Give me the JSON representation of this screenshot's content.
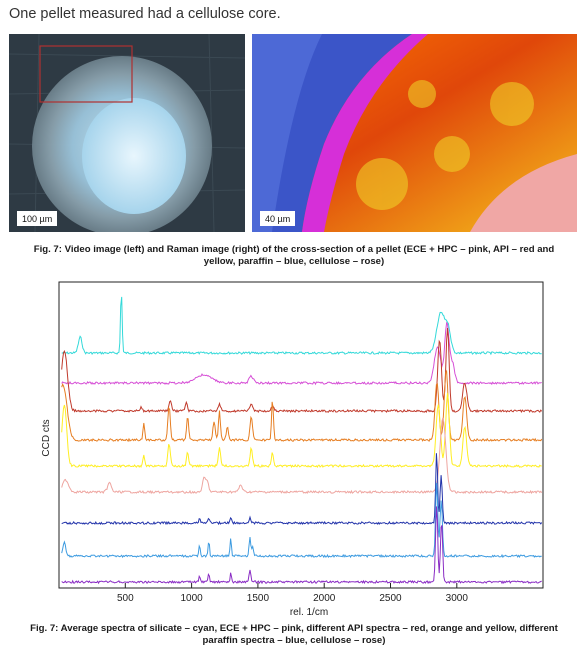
{
  "intro_text": "One pellet measured had a cellulose core.",
  "images": {
    "left_scale": "100 µm",
    "right_scale": "40 µm"
  },
  "figure1_caption": "Fig. 7: Video image (left) and Raman image (right) of the cross-section of a pellet (ECE + HPC – pink, API – red and yellow, paraffin – blue, cellulose – rose)",
  "figure2_caption": "Fig. 7: Average spectra of silicate – cyan, ECE + HPC – pink, different API spectra – red, orange and yellow, different paraffin spectra – blue, cellulose – rose)",
  "colors": {
    "cyan": "#33d9d9",
    "pink": "#d64fd6",
    "red": "#c0392b",
    "orange": "#e67e22",
    "yellow": "#ffee22",
    "rose": "#eea5a0",
    "blue": "#2233aa",
    "lightblue": "#3d9be0",
    "purple": "#8a2cc4"
  },
  "chart_data": {
    "type": "line",
    "xlabel": "rel. 1/cm",
    "ylabel": "CCD cts",
    "xlim": [
      0,
      3650
    ],
    "xticks": [
      500,
      1000,
      1500,
      2000,
      2500,
      3000
    ],
    "series": [
      {
        "color": "#33d9d9",
        "baseline": 353,
        "peaks": [
          [
            160,
            16,
            14
          ],
          [
            470,
            62,
            6
          ],
          [
            2880,
            40,
            30
          ],
          [
            2935,
            22,
            20
          ]
        ]
      },
      {
        "color": "#d64fd6",
        "baseline": 383,
        "peaks": [
          [
            1090,
            8,
            60
          ],
          [
            1450,
            7,
            16
          ],
          [
            2855,
            36,
            24
          ],
          [
            2925,
            58,
            16
          ],
          [
            2965,
            20,
            18
          ]
        ]
      },
      {
        "color": "#c0392b",
        "baseline": 411,
        "peaks": [
          [
            40,
            60,
            24
          ],
          [
            620,
            4,
            8
          ],
          [
            840,
            10,
            10
          ],
          [
            960,
            9,
            8
          ],
          [
            1210,
            7,
            10
          ],
          [
            1450,
            8,
            10
          ],
          [
            1610,
            5,
            10
          ],
          [
            2870,
            72,
            14
          ],
          [
            2930,
            84,
            12
          ],
          [
            3060,
            28,
            16
          ]
        ]
      },
      {
        "color": "#e67e22",
        "baseline": 440,
        "peaks": [
          [
            30,
            55,
            30
          ],
          [
            640,
            18,
            6
          ],
          [
            830,
            34,
            9
          ],
          [
            970,
            24,
            8
          ],
          [
            1170,
            18,
            9
          ],
          [
            1210,
            30,
            7
          ],
          [
            1270,
            14,
            8
          ],
          [
            1450,
            24,
            9
          ],
          [
            1610,
            40,
            7
          ],
          [
            2850,
            58,
            14
          ],
          [
            2920,
            70,
            14
          ],
          [
            3060,
            44,
            14
          ]
        ]
      },
      {
        "color": "#ffee22",
        "baseline": 466,
        "peaks": [
          [
            40,
            62,
            18
          ],
          [
            640,
            12,
            6
          ],
          [
            830,
            22,
            9
          ],
          [
            970,
            14,
            8
          ],
          [
            1210,
            18,
            9
          ],
          [
            1450,
            18,
            9
          ],
          [
            1610,
            14,
            7
          ],
          [
            2860,
            62,
            16
          ],
          [
            2930,
            72,
            14
          ],
          [
            3060,
            40,
            14
          ]
        ]
      },
      {
        "color": "#eea5a0",
        "baseline": 492,
        "peaks": [
          [
            50,
            12,
            22
          ],
          [
            380,
            9,
            14
          ],
          [
            1095,
            14,
            12
          ],
          [
            1120,
            9,
            10
          ],
          [
            1370,
            7,
            12
          ],
          [
            2895,
            74,
            22
          ]
        ]
      },
      {
        "color": "#2233aa",
        "baseline": 523,
        "peaks": [
          [
            1060,
            4,
            6
          ],
          [
            1130,
            5,
            6
          ],
          [
            1295,
            6,
            5
          ],
          [
            1440,
            6,
            6
          ],
          [
            2848,
            72,
            7
          ],
          [
            2882,
            48,
            8
          ]
        ]
      },
      {
        "color": "#3d9be0",
        "baseline": 556,
        "peaks": [
          [
            40,
            14,
            10
          ],
          [
            1060,
            12,
            5
          ],
          [
            1130,
            16,
            5
          ],
          [
            1295,
            18,
            5
          ],
          [
            1440,
            18,
            6
          ],
          [
            1460,
            10,
            6
          ],
          [
            2848,
            74,
            8
          ],
          [
            2882,
            56,
            9
          ]
        ]
      },
      {
        "color": "#8a2cc4",
        "baseline": 582,
        "peaks": [
          [
            1060,
            6,
            5
          ],
          [
            1130,
            8,
            5
          ],
          [
            1295,
            9,
            5
          ],
          [
            1440,
            12,
            6
          ],
          [
            2848,
            78,
            8
          ],
          [
            2885,
            62,
            8
          ]
        ]
      }
    ]
  }
}
